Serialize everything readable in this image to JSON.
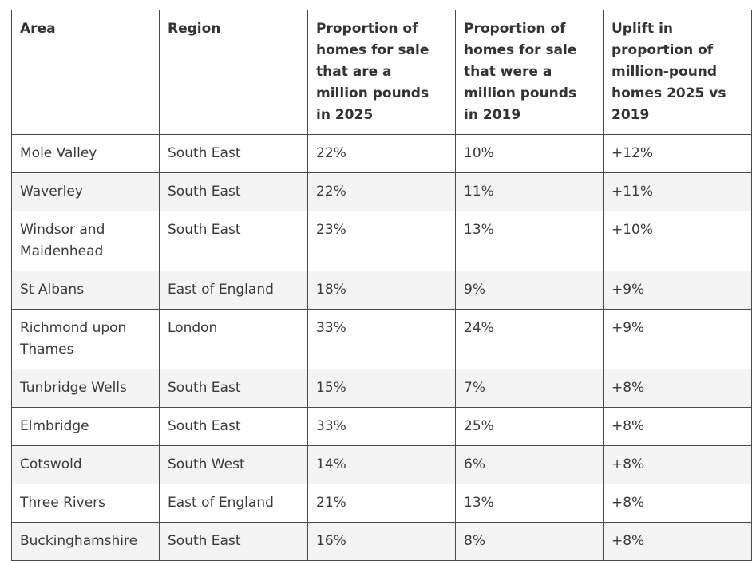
{
  "table": {
    "headers": [
      "Area",
      "Region",
      "Proportion of homes for sale that are a million pounds in 2025",
      "Proportion of homes for sale that were a million pounds in 2019",
      "Uplift in proportion of million-pound homes 2025 vs 2019"
    ],
    "rows": [
      [
        "Mole Valley",
        "South East",
        "22%",
        "10%",
        "+12%"
      ],
      [
        "Waverley",
        "South East",
        "22%",
        "11%",
        "+11%"
      ],
      [
        "Windsor and Maidenhead",
        "South East",
        "23%",
        "13%",
        "+10%"
      ],
      [
        "St Albans",
        "East of England",
        "18%",
        "9%",
        "+9%"
      ],
      [
        "Richmond upon Thames",
        "London",
        "33%",
        "24%",
        "+9%"
      ],
      [
        "Tunbridge Wells",
        "South East",
        "15%",
        "7%",
        "+8%"
      ],
      [
        "Elmbridge",
        "South East",
        "33%",
        "25%",
        "+8%"
      ],
      [
        "Cotswold",
        "South West",
        "14%",
        "6%",
        "+8%"
      ],
      [
        "Three Rivers",
        "East of England",
        "21%",
        "13%",
        "+8%"
      ],
      [
        "Buckinghamshire",
        "South East",
        "16%",
        "8%",
        "+8%"
      ]
    ]
  }
}
